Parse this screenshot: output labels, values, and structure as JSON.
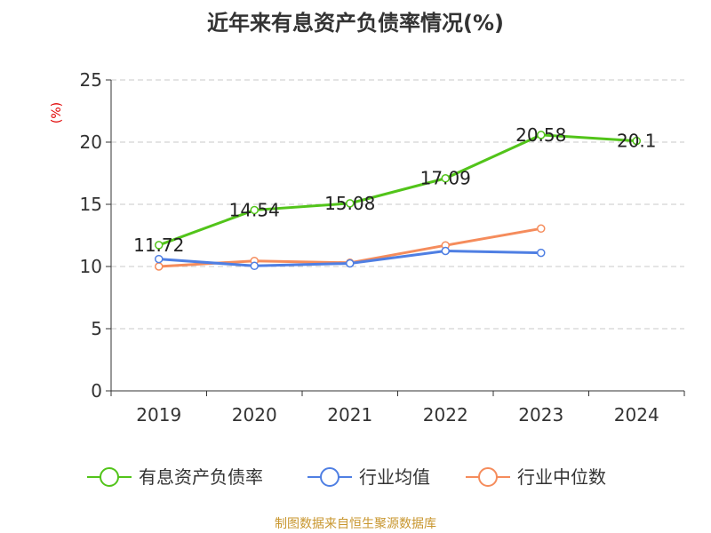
{
  "chart_data": {
    "type": "line",
    "title": "近年来有息资产负债率情况(%)",
    "ylabel": "(%)",
    "categories": [
      "2019",
      "2020",
      "2021",
      "2022",
      "2023",
      "2024"
    ],
    "ylim": [
      0,
      25
    ],
    "yticks": [
      0,
      5,
      10,
      15,
      20,
      25
    ],
    "grid": "horizontal dashed",
    "legend_position": "bottom",
    "series": [
      {
        "name": "有息资产负债率",
        "color": "#52c41a",
        "values": [
          11.72,
          14.54,
          15.08,
          17.09,
          20.58,
          20.1
        ],
        "labels": true
      },
      {
        "name": "行业均值",
        "color": "#4f7fe3",
        "values": [
          10.6,
          10.05,
          10.25,
          11.25,
          11.1,
          null
        ],
        "labels": false
      },
      {
        "name": "行业中位数",
        "color": "#f58c5c",
        "values": [
          10.0,
          10.45,
          10.3,
          11.7,
          13.05,
          null
        ],
        "labels": false
      }
    ]
  },
  "source": "制图数据来自恒生聚源数据库"
}
